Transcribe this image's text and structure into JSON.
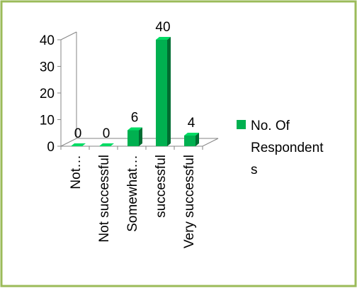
{
  "frame": {
    "border_color": "#9BBB59"
  },
  "chart_data": {
    "type": "bar",
    "categories": [
      "Not…",
      "Not successful",
      "Somewhat…",
      "successful",
      "Very successful"
    ],
    "series": [
      {
        "name": "No. Of Respondents",
        "values": [
          0,
          0,
          6,
          40,
          4
        ],
        "color": "#00B050"
      }
    ],
    "data_labels": [
      "0",
      "0",
      "6",
      "40",
      "4"
    ],
    "y_ticks": [
      "0",
      "10",
      "20",
      "30",
      "40"
    ],
    "ylim": [
      0,
      40
    ],
    "legend": {
      "position": "right",
      "lines": [
        "No. Of",
        "Respondent",
        "s"
      ]
    },
    "grid": false,
    "three_d": true
  }
}
